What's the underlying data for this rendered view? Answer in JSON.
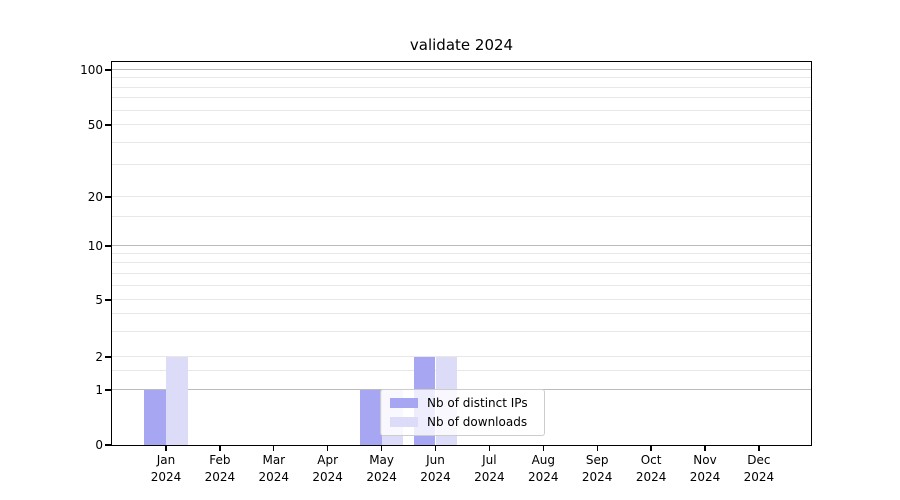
{
  "chart_data": {
    "type": "bar",
    "title": "validate 2024",
    "categories": [
      "Jan",
      "Feb",
      "Mar",
      "Apr",
      "May",
      "Jun",
      "Jul",
      "Aug",
      "Sep",
      "Oct",
      "Nov",
      "Dec"
    ],
    "x_tick_year": "2024",
    "series": [
      {
        "name": "Nb of distinct IPs",
        "color": "#a6a6f2",
        "values": [
          1,
          0,
          0,
          0,
          1,
          2,
          0,
          0,
          0,
          0,
          0,
          0
        ]
      },
      {
        "name": "Nb of downloads",
        "color": "#dcdcf9",
        "values": [
          2,
          0,
          0,
          0,
          1,
          2,
          0,
          0,
          0,
          0,
          0,
          0
        ]
      }
    ],
    "y_axis": {
      "scale": "symlog",
      "tick_values": [
        0,
        1,
        2,
        5,
        10,
        20,
        50,
        100
      ],
      "tick_labels": [
        "0",
        "1",
        "2",
        "5",
        "10",
        "20",
        "50",
        "100"
      ],
      "major_grid_values": [
        1,
        10,
        100
      ],
      "minor_grid_values": [
        1.5,
        3,
        4,
        6,
        7,
        8,
        9,
        15,
        30,
        40,
        60,
        70,
        80,
        90
      ],
      "ylim": [
        0,
        110
      ]
    },
    "legend": {
      "entries": [
        "Nb of distinct IPs",
        "Nb of downloads"
      ],
      "position": "lower-center"
    },
    "grid": {
      "major_color": "#bcbcbc",
      "minor_color": "#e7e7e7"
    },
    "axis_color": "#000000"
  }
}
